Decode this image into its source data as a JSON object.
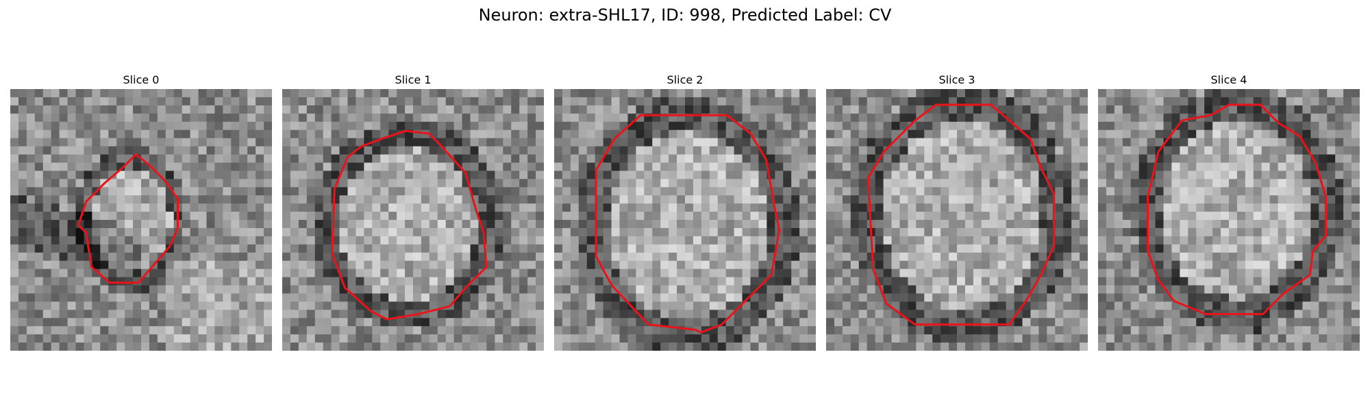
{
  "figure": {
    "title": "Neuron: extra-SHL17, ID: 998, Predicted Label: CV",
    "contour_color": "#e8141a",
    "panels": [
      {
        "title": "Slice 0",
        "seed": 11,
        "contour": [
          [
            0.48,
            0.25
          ],
          [
            0.53,
            0.29
          ],
          [
            0.59,
            0.35
          ],
          [
            0.64,
            0.42
          ],
          [
            0.64,
            0.53
          ],
          [
            0.61,
            0.6
          ],
          [
            0.55,
            0.67
          ],
          [
            0.49,
            0.74
          ],
          [
            0.38,
            0.74
          ],
          [
            0.31,
            0.68
          ],
          [
            0.29,
            0.55
          ],
          [
            0.26,
            0.52
          ],
          [
            0.29,
            0.43
          ],
          [
            0.36,
            0.36
          ],
          [
            0.43,
            0.3
          ]
        ],
        "ring": [
          0.46,
          0.5,
          0.18,
          0.24
        ],
        "band": true
      },
      {
        "title": "Slice 1",
        "seed": 23,
        "contour": [
          [
            0.47,
            0.16
          ],
          [
            0.56,
            0.17
          ],
          [
            0.6,
            0.21
          ],
          [
            0.7,
            0.32
          ],
          [
            0.74,
            0.46
          ],
          [
            0.77,
            0.55
          ],
          [
            0.78,
            0.68
          ],
          [
            0.7,
            0.76
          ],
          [
            0.64,
            0.83
          ],
          [
            0.52,
            0.86
          ],
          [
            0.4,
            0.88
          ],
          [
            0.34,
            0.85
          ],
          [
            0.24,
            0.76
          ],
          [
            0.19,
            0.63
          ],
          [
            0.2,
            0.38
          ],
          [
            0.25,
            0.26
          ],
          [
            0.3,
            0.22
          ],
          [
            0.38,
            0.19
          ]
        ],
        "ring": [
          0.48,
          0.52,
          0.31,
          0.34
        ],
        "band": false
      },
      {
        "title": "Slice 2",
        "seed": 37,
        "contour": [
          [
            0.33,
            0.1
          ],
          [
            0.66,
            0.1
          ],
          [
            0.75,
            0.17
          ],
          [
            0.81,
            0.27
          ],
          [
            0.84,
            0.44
          ],
          [
            0.86,
            0.54
          ],
          [
            0.83,
            0.71
          ],
          [
            0.76,
            0.78
          ],
          [
            0.64,
            0.9
          ],
          [
            0.56,
            0.93
          ],
          [
            0.54,
            0.92
          ],
          [
            0.36,
            0.9
          ],
          [
            0.22,
            0.75
          ],
          [
            0.16,
            0.64
          ],
          [
            0.16,
            0.31
          ],
          [
            0.23,
            0.19
          ]
        ],
        "ring": [
          0.51,
          0.52,
          0.36,
          0.42
        ],
        "band": false
      },
      {
        "title": "Slice 3",
        "seed": 53,
        "contour": [
          [
            0.42,
            0.06
          ],
          [
            0.63,
            0.06
          ],
          [
            0.78,
            0.19
          ],
          [
            0.82,
            0.3
          ],
          [
            0.87,
            0.4
          ],
          [
            0.87,
            0.6
          ],
          [
            0.82,
            0.71
          ],
          [
            0.77,
            0.8
          ],
          [
            0.7,
            0.9
          ],
          [
            0.34,
            0.9
          ],
          [
            0.23,
            0.82
          ],
          [
            0.18,
            0.69
          ],
          [
            0.16,
            0.34
          ],
          [
            0.22,
            0.24
          ],
          [
            0.34,
            0.12
          ]
        ],
        "ring": [
          0.52,
          0.48,
          0.36,
          0.42
        ],
        "band": false
      },
      {
        "title": "Slice 4",
        "seed": 71,
        "contour": [
          [
            0.5,
            0.06
          ],
          [
            0.62,
            0.06
          ],
          [
            0.69,
            0.13
          ],
          [
            0.77,
            0.18
          ],
          [
            0.83,
            0.28
          ],
          [
            0.87,
            0.41
          ],
          [
            0.87,
            0.56
          ],
          [
            0.82,
            0.62
          ],
          [
            0.81,
            0.71
          ],
          [
            0.71,
            0.78
          ],
          [
            0.63,
            0.86
          ],
          [
            0.41,
            0.86
          ],
          [
            0.29,
            0.81
          ],
          [
            0.23,
            0.73
          ],
          [
            0.19,
            0.62
          ],
          [
            0.19,
            0.41
          ],
          [
            0.23,
            0.24
          ],
          [
            0.32,
            0.12
          ],
          [
            0.43,
            0.1
          ]
        ],
        "ring": [
          0.53,
          0.46,
          0.34,
          0.4
        ],
        "band": false
      }
    ]
  }
}
